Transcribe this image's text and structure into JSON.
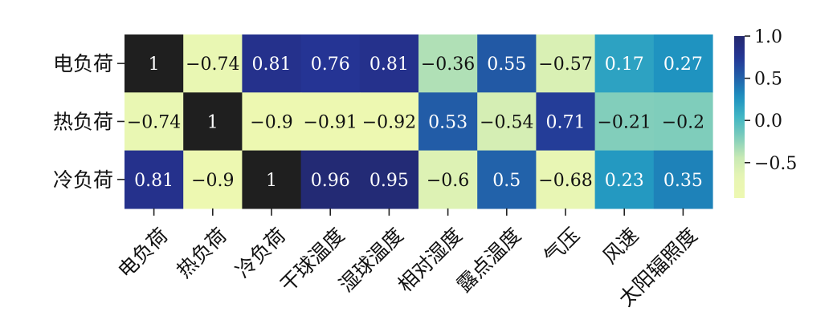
{
  "chart_data": {
    "type": "heatmap",
    "title": "",
    "xlabel": "",
    "ylabel": "",
    "rows": [
      "电负荷",
      "热负荷",
      "冷负荷"
    ],
    "columns": [
      "电负荷",
      "热负荷",
      "冷负荷",
      "干球温度",
      "湿球温度",
      "相对湿度",
      "露点温度",
      "气压",
      "风速",
      "太阳辐照度"
    ],
    "values": [
      [
        1,
        -0.74,
        0.81,
        0.76,
        0.81,
        -0.36,
        0.55,
        -0.57,
        0.17,
        0.27
      ],
      [
        -0.74,
        1,
        -0.9,
        -0.91,
        -0.92,
        0.53,
        -0.54,
        0.71,
        -0.21,
        -0.2
      ],
      [
        0.81,
        -0.9,
        1,
        0.96,
        0.95,
        -0.6,
        0.5,
        -0.68,
        0.23,
        0.35
      ]
    ],
    "cell_labels": [
      [
        "1",
        "−0.74",
        "0.81",
        "0.76",
        "0.81",
        "−0.36",
        "0.55",
        "−0.57",
        "0.17",
        "0.27"
      ],
      [
        "−0.74",
        "1",
        "−0.9",
        "−0.91",
        "−0.92",
        "0.53",
        "−0.54",
        "0.71",
        "−0.21",
        "−0.2"
      ],
      [
        "0.81",
        "−0.9",
        "1",
        "0.96",
        "0.95",
        "−0.6",
        "0.5",
        "−0.68",
        "0.23",
        "0.35"
      ]
    ],
    "colorbar": {
      "colormap": "YlGnBu",
      "vmin": -0.92,
      "vmax": 1.0,
      "ticks": [
        1.0,
        0.5,
        0.0,
        -0.5
      ],
      "tick_labels": [
        "1.0",
        "0.5",
        "0.0",
        "−0.5"
      ]
    },
    "diagonal_color": "#1f1f1f",
    "grid": false
  }
}
